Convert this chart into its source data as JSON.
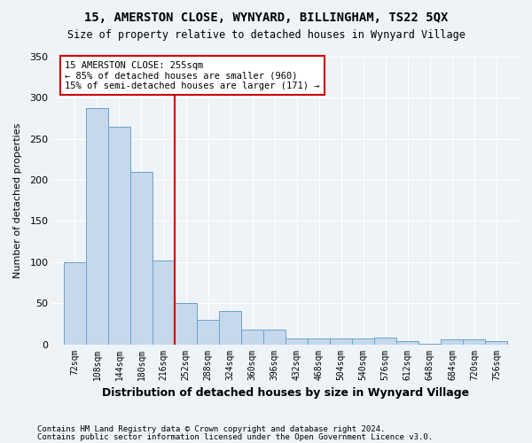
{
  "title1": "15, AMERSTON CLOSE, WYNYARD, BILLINGHAM, TS22 5QX",
  "title2": "Size of property relative to detached houses in Wynyard Village",
  "xlabel": "Distribution of detached houses by size in Wynyard Village",
  "ylabel": "Number of detached properties",
  "footer1": "Contains HM Land Registry data © Crown copyright and database right 2024.",
  "footer2": "Contains public sector information licensed under the Open Government Licence v3.0.",
  "annotation_line1": "15 AMERSTON CLOSE: 255sqm",
  "annotation_line2": "← 85% of detached houses are smaller (960)",
  "annotation_line3": "15% of semi-detached houses are larger (171) →",
  "property_size": 255,
  "bin_edges": [
    72,
    108,
    144,
    180,
    216,
    252,
    288,
    324,
    360,
    396,
    432,
    468,
    504,
    540,
    576,
    612,
    648,
    684,
    720,
    756,
    792
  ],
  "bar_heights": [
    100,
    287,
    265,
    210,
    102,
    50,
    30,
    40,
    18,
    18,
    7,
    7,
    7,
    7,
    8,
    4,
    1,
    6,
    6,
    4
  ],
  "bar_color": "#c5d8ec",
  "bar_edge_color": "#6aa3cd",
  "vline_color": "#cc0000",
  "vline_x": 252,
  "annotation_box_edge_color": "#cc0000",
  "background_color": "#eef3f8",
  "grid_color": "#ffffff",
  "ylim": [
    0,
    350
  ],
  "yticks": [
    0,
    50,
    100,
    150,
    200,
    250,
    300,
    350
  ]
}
